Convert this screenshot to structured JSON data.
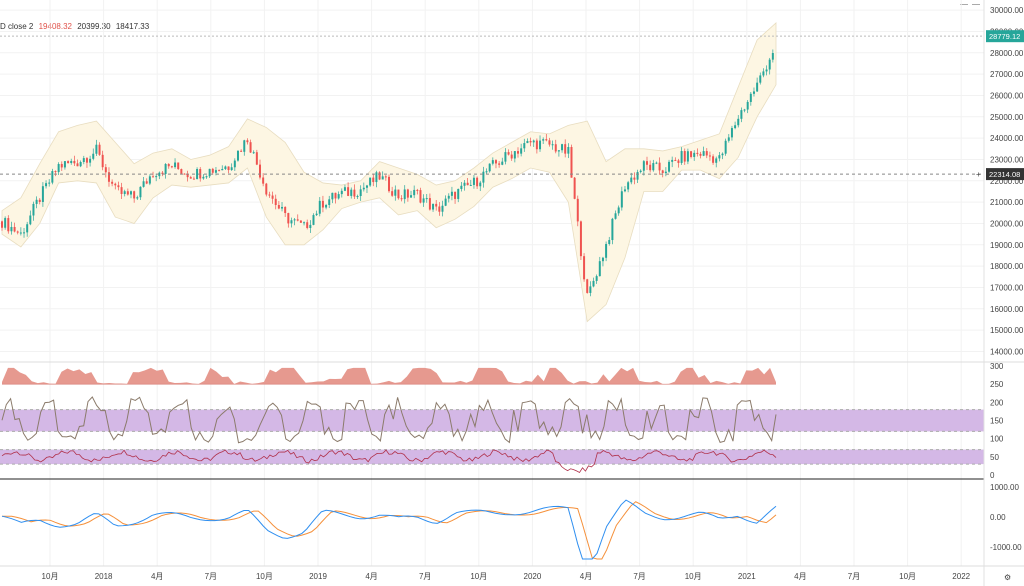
{
  "header": {
    "label": "D close 2",
    "value1": "19408.32",
    "value2": "20399.30",
    "value3": "18417.33",
    "value1_color": "#e0524a"
  },
  "price_axis": {
    "ticks": [
      "30000.00",
      "29000.00",
      "28000.00",
      "27000.00",
      "26000.00",
      "25000.00",
      "24000.00",
      "23000.00",
      "22000.00",
      "21000.00",
      "20000.00",
      "19000.00",
      "18000.00",
      "17000.00",
      "16000.00",
      "15000.00",
      "14000.00"
    ],
    "current_label": "28779.12",
    "crosshair_label": "22314.08"
  },
  "pane2_axis": {
    "ticks": [
      "300",
      "250",
      "200",
      "150",
      "100",
      "50",
      "0"
    ]
  },
  "pane3_axis": {
    "ticks": [
      "1000.00",
      "0.00",
      "-1000.00"
    ]
  },
  "time_axis": {
    "labels": [
      "10月",
      "2018",
      "4月",
      "7月",
      "10月",
      "2019",
      "4月",
      "7月",
      "10月",
      "2020",
      "4月",
      "7月",
      "10月",
      "2021",
      "4月",
      "7月",
      "10月",
      "2022"
    ]
  },
  "chart_data": {
    "type": "line",
    "title": "",
    "xlabel": "",
    "ylabel": "",
    "ylim": [
      13600,
      30100
    ],
    "x": [
      "2017-09",
      "2017-10",
      "2017-11",
      "2017-12",
      "2018-01",
      "2018-02",
      "2018-03",
      "2018-04",
      "2018-05",
      "2018-06",
      "2018-07",
      "2018-08",
      "2018-09",
      "2018-10",
      "2018-11",
      "2018-12",
      "2019-01",
      "2019-02",
      "2019-03",
      "2019-04",
      "2019-05",
      "2019-06",
      "2019-07",
      "2019-08",
      "2019-09",
      "2019-10",
      "2019-11",
      "2019-12",
      "2020-01",
      "2020-02",
      "2020-03",
      "2020-04",
      "2020-05",
      "2020-06",
      "2020-07",
      "2020-08",
      "2020-09",
      "2020-10",
      "2020-11",
      "2020-12",
      "2021-01",
      "2021-02"
    ],
    "series": [
      {
        "values": [
          20100,
          19500,
          21200,
          22700,
          22900,
          23400,
          21500,
          21200,
          22400,
          22700,
          22300,
          22500,
          22700,
          24000,
          21600,
          20300,
          19800,
          21000,
          21400,
          21600,
          22200,
          21300,
          21400,
          20600,
          21400,
          21900,
          22700,
          23300,
          23800,
          23700,
          23300,
          16500,
          19000,
          21800,
          22700,
          22500,
          23100,
          23300,
          23000,
          25000,
          26500,
          28400
        ]
      }
    ],
    "bollinger_upper": [
      20600,
      21200,
      22800,
      24300,
      24600,
      24800,
      23800,
      22800,
      23300,
      23500,
      23000,
      23200,
      23600,
      24900,
      24500,
      23800,
      22400,
      21900,
      21800,
      22000,
      22900,
      22600,
      22300,
      21800,
      22000,
      22600,
      23300,
      23800,
      24300,
      24200,
      24600,
      24800,
      22900,
      23500,
      23500,
      23400,
      23600,
      23900,
      24200,
      26400,
      28600,
      29400
    ],
    "bollinger_lower": [
      19500,
      18900,
      20000,
      21900,
      22000,
      21900,
      20300,
      20000,
      21200,
      21800,
      21700,
      21800,
      21900,
      22600,
      20300,
      19000,
      19000,
      19700,
      20700,
      21000,
      21200,
      20400,
      20600,
      19800,
      20200,
      20800,
      21700,
      22100,
      22600,
      22400,
      21000,
      15400,
      16200,
      18400,
      21500,
      21500,
      22500,
      22500,
      22100,
      23100,
      25000,
      26500
    ],
    "rsi_like_range": [
      0,
      100
    ],
    "stoch_like_range": [
      0,
      300
    ],
    "macd_range": [
      -1500,
      1100
    ],
    "grid": true,
    "legend": "none"
  },
  "colors": {
    "up": "#26a69a",
    "down": "#ef5350",
    "band_fill": "#fdf6e3",
    "band_line": "#e8ddc0",
    "osc_band": "#d4b8e6",
    "area_red": "#e6998f",
    "macd": "#2f8ff0",
    "signal": "#f5903a",
    "osc_line": "#8b7b6b",
    "rsi_line": "#b0304a"
  }
}
